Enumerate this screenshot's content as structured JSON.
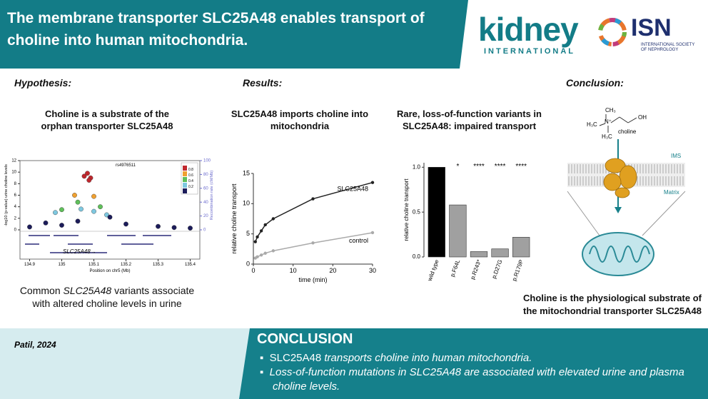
{
  "header": {
    "title": "The membrane transporter SLC25A48 enables transport of choline into human mitochondria.",
    "logo_kidney": "kidney",
    "logo_kidney_sub": "INTERNATIONAL",
    "logo_isn": "ISN",
    "logo_isn_sub": "INTERNATIONAL SOCIETY OF NEPHROLOGY"
  },
  "hypothesis": {
    "heading": "Hypothesis:",
    "subtitle": "Choline is a substrate of the orphan transporter SLC25A48",
    "caption": [
      "Common ",
      "SLC25A48",
      " variants associate with altered choline levels in urine"
    ]
  },
  "results": {
    "heading": "Results:",
    "chart1_title": "SLC25A48 imports choline into mitochondria",
    "chart2_title": "Rare, loss-of-function variants in SLC25A48: impaired transport"
  },
  "conclusion_panel": {
    "heading": "Conclusion:",
    "structure_labels": [
      "CH₃",
      "H₃C",
      "N⁺",
      "H₃C",
      "OH"
    ],
    "choline": "choline",
    "ims": "IMS",
    "matrix": "Matrix",
    "caption": "Choline is the physiological substrate of the mitochondrial transporter SLC25A48"
  },
  "footer": {
    "citation": "Patil, 2024",
    "heading": "CONCLUSION",
    "bullets": [
      [
        "SLC25A48",
        " transports choline into human mitochondria."
      ],
      [
        "Loss-of-function mutations in SLC25A48 are associated with elevated urine and plasma choline levels."
      ]
    ]
  },
  "chart_data": [
    {
      "type": "scatter",
      "annotation": "rs4976511",
      "gene_label": "SLC25A48→",
      "x_label": "Position on chr5 (Mb)",
      "y_label": "-log10 (p-value) urine choline levels",
      "y2_label": "Recombination rate (cM/Mb)",
      "xlim": [
        134.87,
        135.43
      ],
      "xticks": [
        134.9,
        135,
        135.1,
        135.2,
        135.3,
        135.4
      ],
      "ylim": [
        0,
        12
      ],
      "yticks": [
        0,
        2,
        4,
        6,
        8,
        10,
        12
      ],
      "y2lim": [
        0,
        100
      ],
      "y2ticks": [
        0,
        20,
        40,
        60,
        80,
        100
      ],
      "series": [
        {
          "name": "0.8",
          "color": "#c0272d",
          "x": [
            135.07,
            135.08,
            135.09,
            135.085
          ],
          "values": [
            9.3,
            9.8,
            9.0,
            8.6
          ]
        },
        {
          "name": "0.6",
          "color": "#f0a030",
          "x": [
            135.04,
            135.1
          ],
          "values": [
            6.0,
            5.8
          ]
        },
        {
          "name": "0.4",
          "color": "#5fbf5a",
          "x": [
            135.0,
            135.05,
            135.12
          ],
          "values": [
            3.5,
            4.8,
            4.0
          ]
        },
        {
          "name": "0.2",
          "color": "#7ec8e0",
          "x": [
            134.98,
            135.06,
            135.1,
            135.14
          ],
          "values": [
            3.0,
            3.6,
            3.2,
            2.6
          ]
        },
        {
          "color": "#1c1c5a",
          "x": [
            134.9,
            134.95,
            135.0,
            135.05,
            135.15,
            135.2,
            135.3,
            135.35,
            135.4
          ],
          "values": [
            0.5,
            1.2,
            0.8,
            1.5,
            2.2,
            1.0,
            0.6,
            0.4,
            0.3
          ]
        }
      ]
    },
    {
      "type": "line",
      "x_label": "time (min)",
      "y_label": "relative choline transport",
      "x": [
        0.5,
        1,
        2,
        3,
        5,
        15,
        30
      ],
      "xlim": [
        0,
        30
      ],
      "xticks": [
        0,
        10,
        20,
        30
      ],
      "ylim": [
        0,
        15
      ],
      "yticks": [
        0,
        5,
        10,
        15
      ],
      "series": [
        {
          "name": "SLC25A48",
          "color": "#222222",
          "values": [
            3.7,
            4.5,
            5.5,
            6.5,
            7.5,
            10.8,
            13.5
          ]
        },
        {
          "name": "control",
          "color": "#aaaaaa",
          "values": [
            1.0,
            1.2,
            1.5,
            1.8,
            2.2,
            3.5,
            5.2
          ]
        }
      ]
    },
    {
      "type": "bar",
      "y_label": "relative choline transport",
      "categories": [
        "wild type",
        "p.F64L",
        "p.R243*",
        "p.D27G",
        "p.R179P"
      ],
      "values": [
        1.0,
        0.58,
        0.06,
        0.09,
        0.22
      ],
      "colors": [
        "#000000",
        "#a0a0a0",
        "#a0a0a0",
        "#a0a0a0",
        "#a0a0a0"
      ],
      "annotations": [
        null,
        "*",
        "****",
        "****",
        "****"
      ],
      "ylim": [
        0,
        1.05
      ],
      "yticks": [
        {
          "value": 0,
          "label": "0.0"
        },
        {
          "value": 0.5,
          "label": "0.5"
        },
        {
          "value": 1,
          "label": "1.0"
        }
      ]
    }
  ]
}
